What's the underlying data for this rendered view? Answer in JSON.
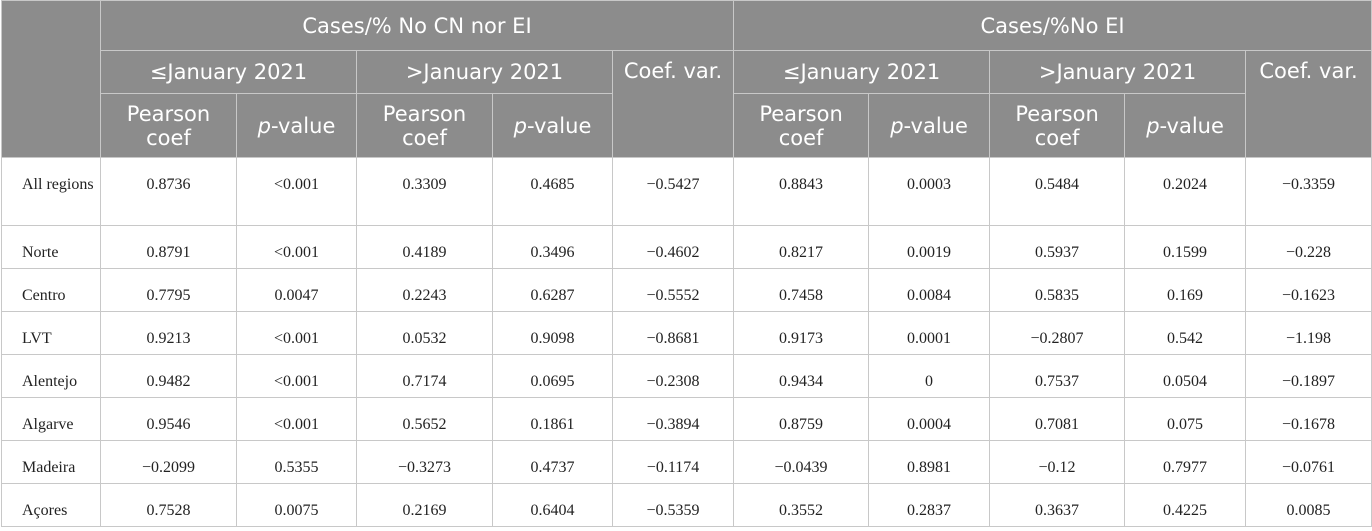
{
  "header": {
    "group1": "Cases/% No CN nor EI",
    "group2": "Cases/%No EI",
    "period_le": "≤January 2021",
    "period_gt": ">January 2021",
    "coef_var": "Coef. var.",
    "pearson": "Pearson coef",
    "p_prefix": "p",
    "p_suffix": "-value"
  },
  "rows": [
    {
      "region": "All regions",
      "v": [
        "0.8736",
        "<0.001",
        "0.3309",
        "0.4685",
        "−0.5427",
        "0.8843",
        "0.0003",
        "0.5484",
        "0.2024",
        "−0.3359"
      ]
    },
    {
      "region": "Norte",
      "v": [
        "0.8791",
        "<0.001",
        "0.4189",
        "0.3496",
        "−0.4602",
        "0.8217",
        "0.0019",
        "0.5937",
        "0.1599",
        "−0.228"
      ]
    },
    {
      "region": "Centro",
      "v": [
        "0.7795",
        "0.0047",
        "0.2243",
        "0.6287",
        "−0.5552",
        "0.7458",
        "0.0084",
        "0.5835",
        "0.169",
        "−0.1623"
      ]
    },
    {
      "region": "LVT",
      "v": [
        "0.9213",
        "<0.001",
        "0.0532",
        "0.9098",
        "−0.8681",
        "0.9173",
        "0.0001",
        "−0.2807",
        "0.542",
        "−1.198"
      ]
    },
    {
      "region": "Alentejo",
      "v": [
        "0.9482",
        "<0.001",
        "0.7174",
        "0.0695",
        "−0.2308",
        "0.9434",
        "0",
        "0.7537",
        "0.0504",
        "−0.1897"
      ]
    },
    {
      "region": "Algarve",
      "v": [
        "0.9546",
        "<0.001",
        "0.5652",
        "0.1861",
        "−0.3894",
        "0.8759",
        "0.0004",
        "0.7081",
        "0.075",
        "−0.1678"
      ]
    },
    {
      "region": "Madeira",
      "v": [
        "−0.2099",
        "0.5355",
        "−0.3273",
        "0.4737",
        "−0.1174",
        "−0.0439",
        "0.8981",
        "−0.12",
        "0.7977",
        "−0.0761"
      ]
    },
    {
      "region": "Açores",
      "v": [
        "0.7528",
        "0.0075",
        "0.2169",
        "0.6404",
        "−0.5359",
        "0.3552",
        "0.2837",
        "0.3637",
        "0.4225",
        "0.0085"
      ]
    }
  ]
}
